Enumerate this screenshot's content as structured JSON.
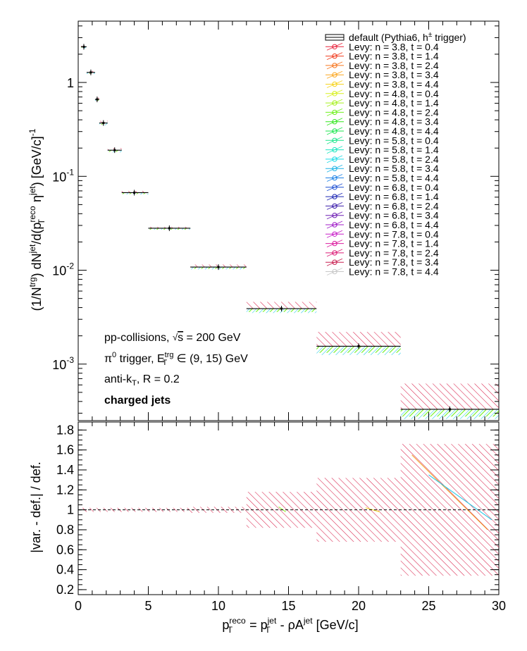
{
  "chart_data": {
    "type": "scatter",
    "xlabel": "p_T^reco = p_T^jet - ρA^jet [GeV/c]",
    "xlim": [
      0,
      30
    ],
    "top": {
      "ylabel": "(1/N^trg) dN^jet/d(p_T^reco η^jet) [GeV/c]^-1",
      "yscale": "log",
      "ylim": [
        0.00025,
        4.5
      ],
      "yticks": [
        "1",
        "10^-1",
        "10^-2",
        "10^-3"
      ],
      "legend_default": "default (Pythia6, h^± trigger)",
      "series": [
        {
          "name": "default (Pythia6, h^± trigger)",
          "color": "#000000",
          "points": [
            {
              "x": 0.4,
              "y": 2.4
            },
            {
              "x": 0.9,
              "y": 1.28
            },
            {
              "x": 1.35,
              "y": 0.66
            },
            {
              "x": 1.8,
              "y": 0.37
            },
            {
              "x": 2.6,
              "y": 0.19
            },
            {
              "x": 4.0,
              "y": 0.067
            },
            {
              "x": 6.5,
              "y": 0.028
            },
            {
              "x": 10.0,
              "y": 0.0108
            },
            {
              "x": 14.5,
              "y": 0.0039
            },
            {
              "x": 20.0,
              "y": 0.00155
            },
            {
              "x": 26.5,
              "y": 0.00033
            }
          ],
          "bins": [
            [
              0.2,
              0.6
            ],
            [
              0.6,
              1.2
            ],
            [
              1.2,
              1.5
            ],
            [
              1.5,
              2.1
            ],
            [
              2.1,
              3.1
            ],
            [
              3.1,
              5.0
            ],
            [
              5.0,
              8.0
            ],
            [
              8.0,
              12.0
            ],
            [
              12.0,
              17.0
            ],
            [
              17.0,
              23.0
            ],
            [
              23.0,
              30.0
            ]
          ]
        }
      ],
      "variation_band": {
        "upper": [
          2.5,
          1.33,
          0.69,
          0.39,
          0.2,
          0.07,
          0.029,
          0.0115,
          0.0046,
          0.0022,
          0.00062
        ],
        "lower": [
          2.3,
          1.23,
          0.63,
          0.35,
          0.18,
          0.064,
          0.027,
          0.0102,
          0.0035,
          0.00125,
          0.00026
        ]
      },
      "annotations": [
        "pp-collisions, √s = 200 GeV",
        "π^0 trigger, E_T^trg ∈ (9, 15) GeV",
        "anti-k_T, R = 0.2",
        "charged jets"
      ]
    },
    "bottom": {
      "ylabel": "|var. - def.| / def.",
      "ylim": [
        0.15,
        1.88
      ],
      "yticks": [
        0.2,
        0.4,
        0.6,
        0.8,
        1,
        1.2,
        1.4,
        1.6,
        1.8
      ],
      "reference_line": 1,
      "band_upper": [
        1.02,
        1.02,
        1.02,
        1.02,
        1.02,
        1.02,
        1.02,
        1.03,
        1.18,
        1.32,
        1.66
      ],
      "band_lower": [
        0.98,
        0.98,
        0.98,
        0.98,
        0.98,
        0.98,
        0.98,
        0.97,
        0.82,
        0.68,
        0.34
      ]
    },
    "xticks": [
      0,
      5,
      10,
      15,
      20,
      25,
      30
    ],
    "levy_series": [
      {
        "name": "Levy: n = 3.8, t = 0.4",
        "color": "#e8233c"
      },
      {
        "name": "Levy: n = 3.8, t = 1.4",
        "color": "#f03c1e"
      },
      {
        "name": "Levy: n = 3.8, t = 2.4",
        "color": "#f6761e"
      },
      {
        "name": "Levy: n = 3.8, t = 3.4",
        "color": "#fba61e"
      },
      {
        "name": "Levy: n = 3.8, t = 4.4",
        "color": "#f7d41e"
      },
      {
        "name": "Levy: n = 4.8, t = 0.4",
        "color": "#d8f01e"
      },
      {
        "name": "Levy: n = 4.8, t = 1.4",
        "color": "#a6f01e"
      },
      {
        "name": "Levy: n = 4.8, t = 2.4",
        "color": "#6ff01e"
      },
      {
        "name": "Levy: n = 4.8, t = 3.4",
        "color": "#32e61e"
      },
      {
        "name": "Levy: n = 4.8, t = 4.4",
        "color": "#1ee650"
      },
      {
        "name": "Levy: n = 5.8, t = 0.4",
        "color": "#1ee68c"
      },
      {
        "name": "Levy: n = 5.8, t = 1.4",
        "color": "#1ee6c0"
      },
      {
        "name": "Levy: n = 5.8, t = 2.4",
        "color": "#1edce6"
      },
      {
        "name": "Levy: n = 5.8, t = 3.4",
        "color": "#1eb4e6"
      },
      {
        "name": "Levy: n = 5.8, t = 4.4",
        "color": "#1e82e6"
      },
      {
        "name": "Levy: n = 6.8, t = 0.4",
        "color": "#1e50d2"
      },
      {
        "name": "Levy: n = 6.8, t = 1.4",
        "color": "#1e28b4"
      },
      {
        "name": "Levy: n = 6.8, t = 2.4",
        "color": "#3c1eaa"
      },
      {
        "name": "Levy: n = 6.8, t = 3.4",
        "color": "#6e1eb4"
      },
      {
        "name": "Levy: n = 6.8, t = 4.4",
        "color": "#a01ec8"
      },
      {
        "name": "Levy: n = 7.8, t = 0.4",
        "color": "#c81ec8"
      },
      {
        "name": "Levy: n = 7.8, t = 1.4",
        "color": "#dc1ea0"
      },
      {
        "name": "Levy: n = 7.8, t = 2.4",
        "color": "#dc1e78"
      },
      {
        "name": "Levy: n = 7.8, t = 3.4",
        "color": "#c81e50"
      },
      {
        "name": "Levy: n = 7.8, t = 4.4",
        "color": "#c8c8c8"
      }
    ]
  }
}
